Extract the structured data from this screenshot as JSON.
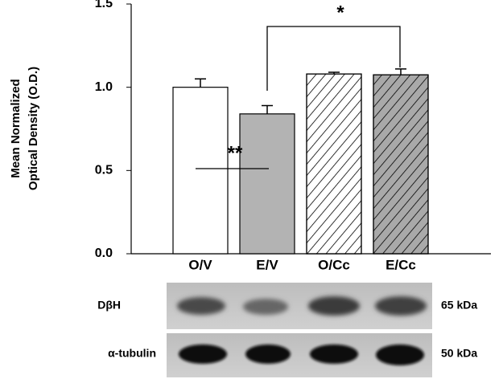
{
  "chart_data": {
    "type": "bar",
    "ylabel": [
      "Mean Normalized",
      "Optical Density (O.D.)"
    ],
    "categories": [
      "O/V",
      "E/V",
      "O/Cc",
      "E/Cc"
    ],
    "values": [
      1.0,
      0.84,
      1.08,
      1.075
    ],
    "errors": [
      0.05,
      0.05,
      0.01,
      0.035
    ],
    "colors": [
      "#ffffff",
      "#b3b3b3",
      "#ffffff",
      "#a9a9a9"
    ],
    "hatch": [
      false,
      false,
      true,
      true
    ],
    "ylim": [
      0,
      1.5
    ],
    "yticks": [
      {
        "value": 0,
        "label": "0.0"
      },
      {
        "value": 0.5,
        "label": "0.5"
      },
      {
        "value": 1,
        "label": "1.0"
      },
      {
        "value": 1.5,
        "label": "1.5"
      }
    ],
    "annotations": [
      "*",
      "**"
    ]
  },
  "blot": {
    "rows": [
      {
        "label": "DβH",
        "size": "65 kDa"
      },
      {
        "label": "α-tubulin",
        "size": "50 kDa"
      }
    ]
  }
}
